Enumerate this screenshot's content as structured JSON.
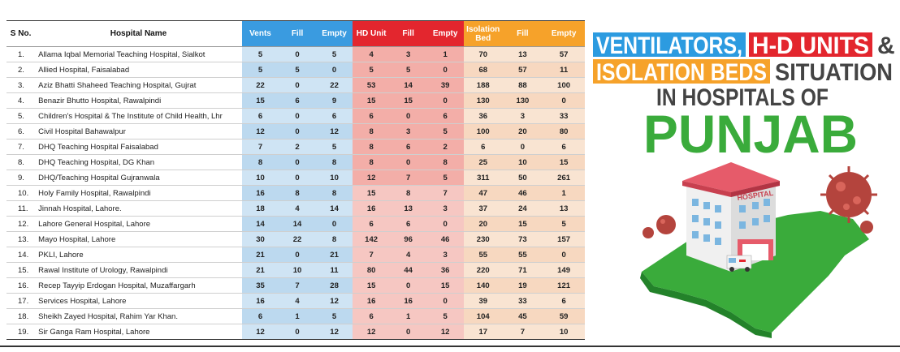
{
  "table": {
    "headers": {
      "sno": "S No.",
      "hospital": "Hospital Name",
      "vents": "Vents",
      "vents_fill": "Fill",
      "vents_empty": "Empty",
      "hd_unit": "HD Unit",
      "hd_fill": "Fill",
      "hd_empty": "Empty",
      "iso_bed": "Isolation Bed",
      "iso_fill": "Fill",
      "iso_empty": "Empty"
    },
    "rows": [
      {
        "sno": "1.",
        "name": "Allama Iqbal Memorial Teaching Hospital, Sialkot",
        "vents": "5",
        "vfill": "0",
        "vempty": "5",
        "hd": "4",
        "hfill": "3",
        "hempty": "1",
        "iso": "70",
        "ifill": "13",
        "iempty": "57"
      },
      {
        "sno": "2.",
        "name": "Allied Hospital, Faisalabad",
        "vents": "5",
        "vfill": "5",
        "vempty": "0",
        "hd": "5",
        "hfill": "5",
        "hempty": "0",
        "iso": "68",
        "ifill": "57",
        "iempty": "11"
      },
      {
        "sno": "3.",
        "name": "Aziz Bhatti Shaheed Teaching Hospital, Gujrat",
        "vents": "22",
        "vfill": "0",
        "vempty": "22",
        "hd": "53",
        "hfill": "14",
        "hempty": "39",
        "iso": "188",
        "ifill": "88",
        "iempty": "100"
      },
      {
        "sno": "4.",
        "name": "Benazir Bhutto Hospital, Rawalpindi",
        "vents": "15",
        "vfill": "6",
        "vempty": "9",
        "hd": "15",
        "hfill": "15",
        "hempty": "0",
        "iso": "130",
        "ifill": "130",
        "iempty": "0"
      },
      {
        "sno": "5.",
        "name": "Children's Hospital & The Institute of Child Health, Lhr",
        "vents": "6",
        "vfill": "0",
        "vempty": "6",
        "hd": "6",
        "hfill": "0",
        "hempty": "6",
        "iso": "36",
        "ifill": "3",
        "iempty": "33"
      },
      {
        "sno": "6.",
        "name": "Civil Hospital Bahawalpur",
        "vents": "12",
        "vfill": "0",
        "vempty": "12",
        "hd": "8",
        "hfill": "3",
        "hempty": "5",
        "iso": "100",
        "ifill": "20",
        "iempty": "80"
      },
      {
        "sno": "7.",
        "name": "DHQ Teaching Hospital Faisalabad",
        "vents": "7",
        "vfill": "2",
        "vempty": "5",
        "hd": "8",
        "hfill": "6",
        "hempty": "2",
        "iso": "6",
        "ifill": "0",
        "iempty": "6"
      },
      {
        "sno": "8.",
        "name": "DHQ Teaching Hospital, DG Khan",
        "vents": "8",
        "vfill": "0",
        "vempty": "8",
        "hd": "8",
        "hfill": "0",
        "hempty": "8",
        "iso": "25",
        "ifill": "10",
        "iempty": "15"
      },
      {
        "sno": "9.",
        "name": "DHQ/Teaching Hospital Gujranwala",
        "vents": "10",
        "vfill": "0",
        "vempty": "10",
        "hd": "12",
        "hfill": "7",
        "hempty": "5",
        "iso": "311",
        "ifill": "50",
        "iempty": "261"
      },
      {
        "sno": "10.",
        "name": "Holy Family Hospital, Rawalpindi",
        "vents": "16",
        "vfill": "8",
        "vempty": "8",
        "hd": "15",
        "hfill": "8",
        "hempty": "7",
        "iso": "47",
        "ifill": "46",
        "iempty": "1"
      },
      {
        "sno": "11.",
        "name": "Jinnah Hospital, Lahore.",
        "vents": "18",
        "vfill": "4",
        "vempty": "14",
        "hd": "16",
        "hfill": "13",
        "hempty": "3",
        "iso": "37",
        "ifill": "24",
        "iempty": "13"
      },
      {
        "sno": "12.",
        "name": "Lahore General Hospital, Lahore",
        "vents": "14",
        "vfill": "14",
        "vempty": "0",
        "hd": "6",
        "hfill": "6",
        "hempty": "0",
        "iso": "20",
        "ifill": "15",
        "iempty": "5"
      },
      {
        "sno": "13.",
        "name": "Mayo Hospital, Lahore",
        "vents": "30",
        "vfill": "22",
        "vempty": "8",
        "hd": "142",
        "hfill": "96",
        "hempty": "46",
        "iso": "230",
        "ifill": "73",
        "iempty": "157"
      },
      {
        "sno": "14.",
        "name": "PKLI, Lahore",
        "vents": "21",
        "vfill": "0",
        "vempty": "21",
        "hd": "7",
        "hfill": "4",
        "hempty": "3",
        "iso": "55",
        "ifill": "55",
        "iempty": "0"
      },
      {
        "sno": "15.",
        "name": "Rawal Institute of Urology, Rawalpindi",
        "vents": "21",
        "vfill": "10",
        "vempty": "11",
        "hd": "80",
        "hfill": "44",
        "hempty": "36",
        "iso": "220",
        "ifill": "71",
        "iempty": "149"
      },
      {
        "sno": "16.",
        "name": "Recep Tayyip Erdogan Hospital, Muzaffargarh",
        "vents": "35",
        "vfill": "7",
        "vempty": "28",
        "hd": "15",
        "hfill": "0",
        "hempty": "15",
        "iso": "140",
        "ifill": "19",
        "iempty": "121"
      },
      {
        "sno": "17.",
        "name": "Services Hospital, Lahore",
        "vents": "16",
        "vfill": "4",
        "vempty": "12",
        "hd": "16",
        "hfill": "16",
        "hempty": "0",
        "iso": "39",
        "ifill": "33",
        "iempty": "6"
      },
      {
        "sno": "18.",
        "name": "Sheikh Zayed Hospital, Rahim Yar Khan.",
        "vents": "6",
        "vfill": "1",
        "vempty": "5",
        "hd": "6",
        "hfill": "1",
        "hempty": "5",
        "iso": "104",
        "ifill": "45",
        "iempty": "59"
      },
      {
        "sno": "19.",
        "name": "Sir Ganga Ram Hospital, Lahore",
        "vents": "12",
        "vfill": "0",
        "vempty": "12",
        "hd": "12",
        "hfill": "0",
        "hempty": "12",
        "iso": "17",
        "ifill": "7",
        "iempty": "10"
      }
    ]
  },
  "title": {
    "ventilators": "VENTILATORS,",
    "hd_units": "H-D UNITS",
    "amp": "&",
    "isolation_beds": "ISOLATION BEDS",
    "situation": "SITUATION",
    "in_hospitals_of": "IN HOSPITALS OF",
    "punjab": "PUNJAB"
  },
  "illustration": {
    "hospital_sign": "HOSPITAL"
  },
  "colors": {
    "vent_header": "#3a9be0",
    "hd_header": "#e3262e",
    "iso_header": "#f6a22a",
    "vent_row": "#c2dcf0",
    "hd_row": "#f4b9b3",
    "iso_row": "#f7dcc6",
    "title_blue": "#2c9be0",
    "title_red": "#e3262e",
    "title_orange": "#f6a22a",
    "punjab_green": "#3aab3b"
  }
}
